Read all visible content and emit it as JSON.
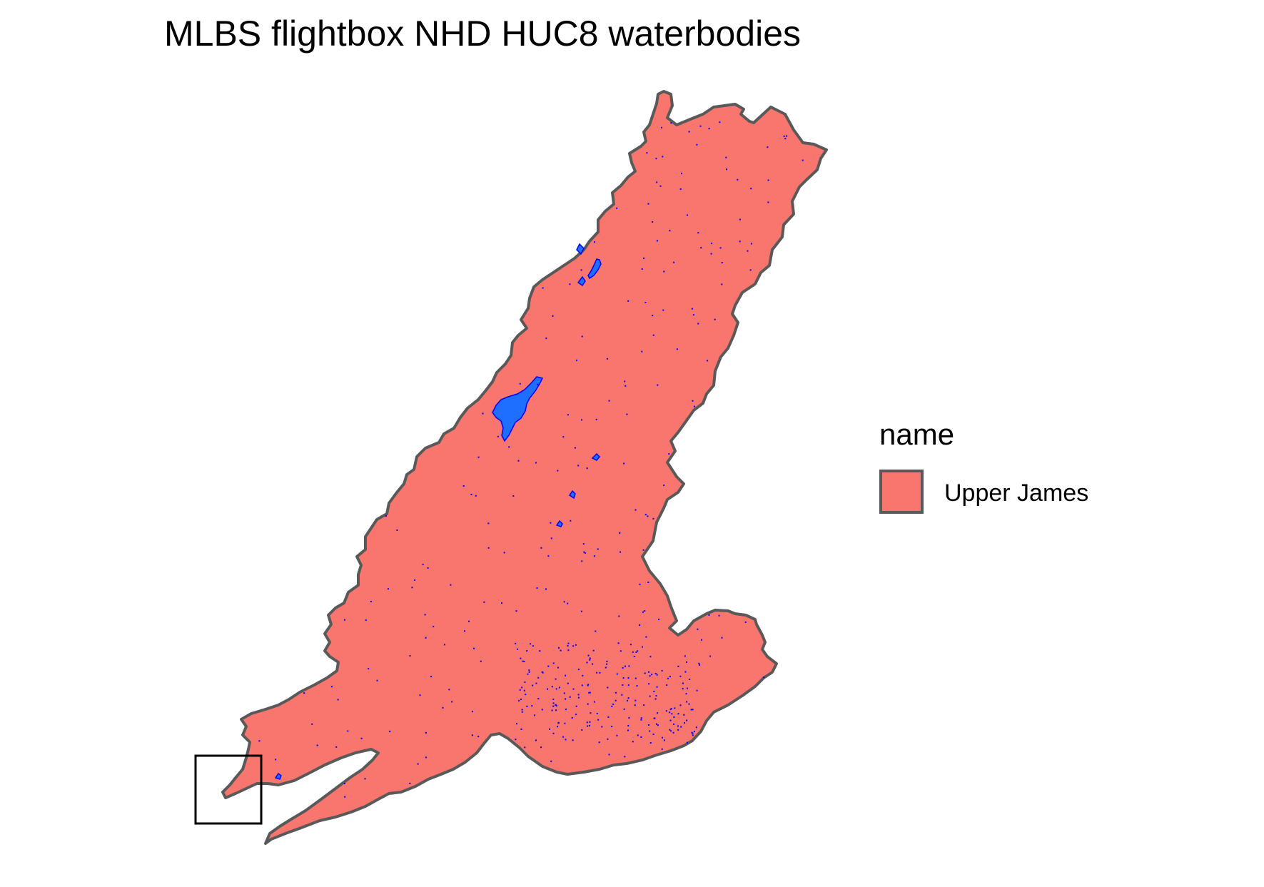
{
  "title": "MLBS flightbox NHD HUC8 waterbodies",
  "legend": {
    "title": "name",
    "items": [
      {
        "label": "Upper James",
        "fill": "#F8766D",
        "stroke": "#595959"
      }
    ]
  },
  "colors": {
    "huc8_fill": "#F8766D",
    "huc8_border": "#595959",
    "waterbody_fill": "#1E6FFF",
    "waterbody_outline": "#0000FF",
    "flightbox_outline": "#000000"
  },
  "layers": [
    "huc8-polygon",
    "waterbodies",
    "flightbox"
  ]
}
